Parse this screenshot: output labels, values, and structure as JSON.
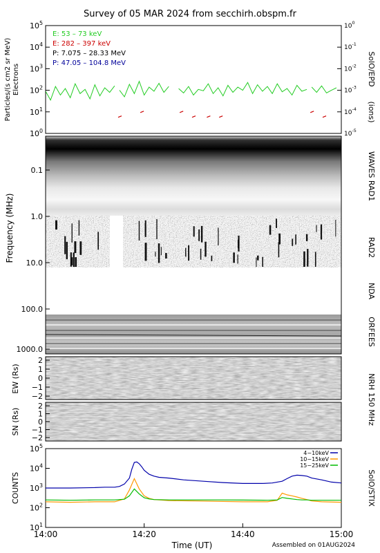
{
  "title": "Survey of 05 MAR 2024 from secchirh.obspm.fr",
  "footer": "Assembled on 01AUG2024",
  "chart_data": [
    {
      "id": "epd",
      "type": "line",
      "ylabel": "Particles/(s cm2 sr MeV)",
      "ylabel2": "Electrons",
      "right_label": "SolO/EPD",
      "right_label_paren": "(ions)",
      "log_scale": true,
      "ylim": [
        1,
        100000
      ],
      "ytick_labels": [
        "10^0",
        "10^1",
        "10^2",
        "10^3",
        "10^4",
        "10^5"
      ],
      "y2lim": [
        1e-05,
        1
      ],
      "y2tick_labels": [
        "10^-5",
        "10^-4",
        "10^-3",
        "10^-2",
        "10^-1",
        "10^0"
      ],
      "legend": [
        {
          "label": "E: 53 – 73 keV",
          "color": "#22cc22"
        },
        {
          "label": "E: 282 – 397 keV",
          "color": "#cc0000"
        },
        {
          "label": "P: 7.075 – 28.33 MeV",
          "color": "#000000"
        },
        {
          "label": "P: 47.05 – 104.8 MeV",
          "color": "#000099"
        }
      ],
      "series": [
        {
          "name": "E: 53 – 73 keV",
          "color": "#22cc22",
          "segments": [
            {
              "x": [
                "14:00",
                "14:01",
                "14:02",
                "14:03",
                "14:04",
                "14:05",
                "14:06",
                "14:07",
                "14:08",
                "14:09",
                "14:10",
                "14:11",
                "14:12",
                "14:13",
                "14:14"
              ],
              "y": [
                90,
                35,
                150,
                60,
                120,
                45,
                200,
                70,
                110,
                40,
                180,
                55,
                130,
                80,
                160
              ]
            },
            {
              "x": [
                "14:15",
                "14:16",
                "14:17",
                "14:18",
                "14:19",
                "14:20",
                "14:21",
                "14:22",
                "14:23",
                "14:24",
                "14:25"
              ],
              "y": [
                100,
                50,
                190,
                70,
                260,
                60,
                140,
                90,
                210,
                80,
                150
              ]
            },
            {
              "x": [
                "14:27",
                "14:28",
                "14:29",
                "14:30",
                "14:31",
                "14:32",
                "14:33",
                "14:34",
                "14:35",
                "14:36",
                "14:37",
                "14:38",
                "14:39",
                "14:40",
                "14:41",
                "14:42",
                "14:43",
                "14:44",
                "14:45",
                "14:46",
                "14:47",
                "14:48",
                "14:49",
                "14:50",
                "14:51",
                "14:52",
                "14:53"
              ],
              "y": [
                120,
                75,
                150,
                60,
                110,
                95,
                200,
                70,
                130,
                55,
                170,
                80,
                140,
                100,
                230,
                70,
                180,
                90,
                150,
                70,
                200,
                85,
                120,
                60,
                170,
                90,
                110
              ]
            },
            {
              "x": [
                "14:54",
                "14:55",
                "14:56",
                "14:57",
                "14:58",
                "14:59"
              ],
              "y": [
                140,
                80,
                160,
                75,
                100,
                130
              ]
            }
          ]
        },
        {
          "name": "E: 282 – 397 keV",
          "color": "#cc0000",
          "style": "dashes",
          "marks": [
            {
              "x": "14:15:00",
              "y": 6
            },
            {
              "x": "14:19:30",
              "y": 10
            },
            {
              "x": "14:27:30",
              "y": 10
            },
            {
              "x": "14:30:00",
              "y": 6
            },
            {
              "x": "14:33:00",
              "y": 6
            },
            {
              "x": "14:35:30",
              "y": 6
            },
            {
              "x": "14:54:00",
              "y": 10
            },
            {
              "x": "14:56:30",
              "y": 6
            }
          ]
        }
      ]
    },
    {
      "id": "waves",
      "type": "heatmap",
      "ylabel": "Frequency (MHz)",
      "ytick_labels": [
        "0.1",
        "1.0",
        "10.0",
        "100.0",
        "1000.0"
      ],
      "right_labels": [
        "WAVES RAD1",
        "RAD2",
        "NDA",
        "ORFEES"
      ],
      "data_gap": {
        "from": "14:13",
        "to": "14:15",
        "band": "RAD2"
      }
    },
    {
      "id": "nrh_ew",
      "type": "heatmap",
      "ylabel": "EW (Rs)",
      "ytick_labels": [
        "2",
        "1",
        "0",
        "−1",
        "−2"
      ],
      "right_label": "NRH 150 MHz"
    },
    {
      "id": "nrh_sn",
      "type": "heatmap",
      "ylabel": "SN (Rs)",
      "ytick_labels": [
        "2",
        "1",
        "0",
        "−1",
        "−2"
      ]
    },
    {
      "id": "stix",
      "type": "line",
      "ylabel": "COUNTS",
      "right_label": "SolO/STIX",
      "xlabel": "Time (UT)",
      "log_scale": true,
      "ylim": [
        10,
        100000
      ],
      "ytick_labels": [
        "10^1",
        "10^2",
        "10^3",
        "10^4",
        "10^5"
      ],
      "xtick_labels": [
        "14:00",
        "14:20",
        "14:40",
        "15:00"
      ],
      "series": [
        {
          "name": "4−10keV",
          "color": "#0000aa",
          "x": [
            "14:00",
            "14:05",
            "14:10",
            "14:12",
            "14:14",
            "14:15",
            "14:16",
            "14:17",
            "14:17:30",
            "14:18",
            "14:18:30",
            "14:19",
            "14:19:30",
            "14:20",
            "14:21",
            "14:22",
            "14:23",
            "14:25",
            "14:28",
            "14:32",
            "14:36",
            "14:40",
            "14:44",
            "14:46",
            "14:48",
            "14:49",
            "14:50",
            "14:51",
            "14:52",
            "14:53",
            "14:54",
            "14:56",
            "14:58",
            "15:00"
          ],
          "y": [
            1000,
            1000,
            1050,
            1100,
            1100,
            1200,
            1600,
            3200,
            9000,
            20000,
            21000,
            17000,
            12000,
            8000,
            5000,
            4000,
            3500,
            3200,
            2600,
            2200,
            1900,
            1700,
            1700,
            1800,
            2200,
            3000,
            4000,
            4500,
            4300,
            4000,
            3200,
            2600,
            2000,
            1800
          ]
        },
        {
          "name": "10−15keV",
          "color": "#ff9900",
          "x": [
            "14:00",
            "14:05",
            "14:10",
            "14:14",
            "14:16",
            "14:17",
            "14:18",
            "14:19",
            "14:20",
            "14:21",
            "14:22",
            "14:25",
            "14:30",
            "14:35",
            "14:40",
            "14:45",
            "14:47",
            "14:48",
            "14:49",
            "14:50",
            "14:51",
            "14:52",
            "14:53",
            "14:54",
            "14:56",
            "15:00"
          ],
          "y": [
            200,
            190,
            200,
            200,
            280,
            800,
            3000,
            900,
            400,
            300,
            260,
            230,
            220,
            210,
            200,
            200,
            240,
            550,
            450,
            400,
            350,
            300,
            260,
            220,
            200,
            190
          ]
        },
        {
          "name": "15−25keV",
          "color": "#00bb00",
          "x": [
            "14:00",
            "14:05",
            "14:10",
            "14:14",
            "14:16",
            "14:17",
            "14:18",
            "14:19",
            "14:20",
            "14:21",
            "14:22",
            "14:25",
            "14:30",
            "14:35",
            "14:40",
            "14:45",
            "14:47",
            "14:48",
            "14:49",
            "14:50",
            "14:51",
            "14:52",
            "14:53",
            "14:54",
            "14:56",
            "15:00"
          ],
          "y": [
            250,
            240,
            250,
            250,
            270,
            400,
            900,
            500,
            320,
            280,
            260,
            250,
            250,
            250,
            245,
            240,
            250,
            330,
            300,
            280,
            260,
            250,
            250,
            240,
            240,
            240
          ]
        }
      ]
    }
  ]
}
